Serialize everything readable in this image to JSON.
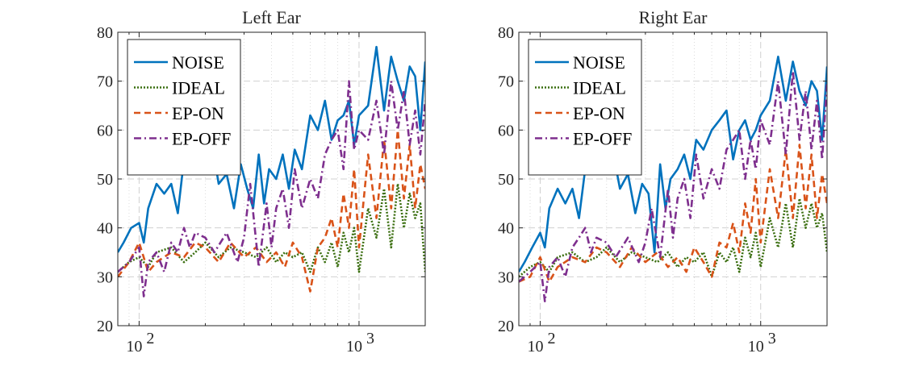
{
  "chart_data": [
    {
      "type": "line",
      "title": "Left Ear",
      "xlabel": "",
      "ylabel": "",
      "xscale": "log",
      "xlim": [
        80,
        2000
      ],
      "ylim": [
        20,
        80
      ],
      "yticks": [
        20,
        30,
        40,
        50,
        60,
        70,
        80
      ],
      "xticks": [
        {
          "base": "10",
          "exp": "2"
        },
        {
          "base": "10",
          "exp": "3"
        }
      ],
      "grid": true,
      "legend": "top-left",
      "series": [
        {
          "name": "NOISE",
          "color": "#0072BD",
          "style": "solid",
          "x": [
            80,
            85,
            92,
            100,
            105,
            110,
            120,
            130,
            140,
            150,
            160,
            170,
            180,
            190,
            200,
            215,
            230,
            250,
            270,
            290,
            310,
            330,
            350,
            370,
            390,
            420,
            450,
            480,
            510,
            550,
            600,
            650,
            700,
            750,
            800,
            850,
            900,
            950,
            1000,
            1100,
            1200,
            1300,
            1400,
            1500,
            1600,
            1700,
            1800,
            1900,
            2000
          ],
          "values": [
            35,
            37,
            40,
            41,
            37,
            44,
            49,
            47,
            49,
            43,
            54,
            57,
            55,
            58,
            53,
            57,
            49,
            51,
            44,
            53,
            48,
            44,
            55,
            45,
            52,
            50,
            55,
            48,
            56,
            52,
            63,
            60,
            66,
            58,
            62,
            63,
            66,
            57,
            63,
            65,
            77,
            64,
            75,
            70,
            66,
            73,
            71,
            60,
            74
          ]
        },
        {
          "name": "IDEAL",
          "color": "#3A6E0F",
          "style": "dotted",
          "x": [
            80,
            90,
            100,
            110,
            120,
            140,
            160,
            180,
            200,
            230,
            260,
            300,
            340,
            380,
            420,
            460,
            500,
            550,
            600,
            650,
            700,
            750,
            800,
            850,
            900,
            950,
            1000,
            1100,
            1200,
            1300,
            1400,
            1500,
            1600,
            1700,
            1800,
            1900,
            2000
          ],
          "values": [
            31,
            33,
            34,
            32,
            35,
            36,
            33,
            35,
            37,
            34,
            36,
            35,
            34,
            36,
            33,
            35,
            34,
            35,
            31,
            36,
            33,
            37,
            32,
            39,
            35,
            40,
            31,
            44,
            38,
            48,
            36,
            49,
            40,
            47,
            42,
            45,
            31
          ]
        },
        {
          "name": "EP-ON",
          "color": "#D95319",
          "style": "dashed",
          "x": [
            80,
            90,
            100,
            110,
            120,
            140,
            160,
            180,
            200,
            230,
            260,
            300,
            340,
            380,
            420,
            460,
            500,
            550,
            600,
            650,
            700,
            750,
            800,
            850,
            900,
            950,
            1000,
            1100,
            1200,
            1300,
            1400,
            1500,
            1600,
            1700,
            1800,
            1900,
            2000
          ],
          "values": [
            30,
            33,
            37,
            31,
            33,
            35,
            34,
            37,
            36,
            33,
            37,
            34,
            36,
            33,
            35,
            32,
            37,
            34,
            27,
            36,
            38,
            42,
            36,
            47,
            40,
            52,
            36,
            55,
            42,
            58,
            44,
            60,
            46,
            57,
            44,
            53,
            48
          ]
        },
        {
          "name": "EP-OFF",
          "color": "#7E2F8E",
          "style": "dashdot",
          "x": [
            80,
            90,
            100,
            105,
            110,
            120,
            130,
            140,
            150,
            160,
            170,
            180,
            200,
            220,
            250,
            280,
            300,
            320,
            350,
            380,
            400,
            420,
            450,
            480,
            510,
            550,
            600,
            650,
            700,
            750,
            800,
            850,
            900,
            950,
            1000,
            1100,
            1200,
            1300,
            1400,
            1500,
            1600,
            1700,
            1800,
            1900,
            2000
          ],
          "values": [
            31,
            33,
            36,
            26,
            33,
            35,
            31,
            37,
            35,
            40,
            36,
            39,
            38,
            35,
            39,
            33,
            38,
            49,
            32,
            45,
            36,
            44,
            48,
            40,
            52,
            44,
            50,
            46,
            55,
            58,
            60,
            52,
            70,
            56,
            60,
            58,
            66,
            55,
            70,
            60,
            68,
            57,
            64,
            55,
            66
          ]
        }
      ]
    },
    {
      "type": "line",
      "title": "Right Ear",
      "xlabel": "",
      "ylabel": "",
      "xscale": "log",
      "xlim": [
        80,
        2000
      ],
      "ylim": [
        20,
        80
      ],
      "yticks": [
        20,
        30,
        40,
        50,
        60,
        70,
        80
      ],
      "xticks": [
        {
          "base": "10",
          "exp": "2"
        },
        {
          "base": "10",
          "exp": "3"
        }
      ],
      "grid": true,
      "legend": "top-left",
      "series": [
        {
          "name": "NOISE",
          "color": "#0072BD",
          "style": "solid",
          "x": [
            80,
            85,
            92,
            100,
            105,
            110,
            120,
            130,
            140,
            150,
            160,
            170,
            180,
            190,
            200,
            215,
            230,
            250,
            270,
            290,
            310,
            330,
            350,
            370,
            390,
            420,
            450,
            480,
            510,
            550,
            600,
            650,
            700,
            750,
            800,
            850,
            900,
            950,
            1000,
            1100,
            1200,
            1300,
            1400,
            1500,
            1600,
            1700,
            1800,
            1900,
            2000
          ],
          "values": [
            31,
            33,
            36,
            39,
            36,
            44,
            48,
            45,
            48,
            42,
            52,
            54,
            55,
            56,
            52,
            55,
            48,
            51,
            43,
            49,
            47,
            35,
            53,
            44,
            50,
            52,
            55,
            50,
            58,
            56,
            60,
            62,
            64,
            54,
            60,
            62,
            58,
            60,
            63,
            66,
            75,
            66,
            74,
            68,
            65,
            70,
            68,
            58,
            73
          ]
        },
        {
          "name": "IDEAL",
          "color": "#3A6E0F",
          "style": "dotted",
          "x": [
            80,
            90,
            100,
            110,
            120,
            140,
            160,
            180,
            200,
            230,
            260,
            300,
            340,
            380,
            420,
            460,
            500,
            550,
            600,
            650,
            700,
            750,
            800,
            850,
            900,
            950,
            1000,
            1100,
            1200,
            1300,
            1400,
            1500,
            1600,
            1700,
            1800,
            1900,
            2000
          ],
          "values": [
            30,
            32,
            33,
            31,
            34,
            35,
            33,
            34,
            36,
            33,
            35,
            34,
            33,
            35,
            32,
            34,
            33,
            35,
            30,
            35,
            33,
            36,
            31,
            38,
            34,
            39,
            32,
            42,
            36,
            45,
            36,
            46,
            40,
            45,
            40,
            43,
            35
          ]
        },
        {
          "name": "EP-ON",
          "color": "#D95319",
          "style": "dashed",
          "x": [
            80,
            90,
            100,
            110,
            120,
            140,
            160,
            180,
            200,
            230,
            260,
            300,
            340,
            380,
            420,
            460,
            500,
            550,
            600,
            650,
            700,
            750,
            800,
            850,
            900,
            950,
            1000,
            1100,
            1200,
            1300,
            1400,
            1500,
            1600,
            1700,
            1800,
            1900,
            2000
          ],
          "values": [
            29,
            30,
            34,
            29,
            32,
            34,
            33,
            36,
            35,
            32,
            36,
            33,
            35,
            32,
            34,
            31,
            36,
            33,
            30,
            37,
            36,
            41,
            35,
            45,
            39,
            50,
            37,
            52,
            42,
            56,
            42,
            57,
            44,
            55,
            42,
            51,
            45
          ]
        },
        {
          "name": "EP-OFF",
          "color": "#7E2F8E",
          "style": "dashdot",
          "x": [
            80,
            90,
            100,
            105,
            110,
            120,
            130,
            140,
            150,
            160,
            170,
            180,
            200,
            220,
            250,
            280,
            300,
            320,
            350,
            380,
            400,
            420,
            450,
            480,
            510,
            550,
            600,
            650,
            700,
            750,
            800,
            850,
            900,
            950,
            1000,
            1100,
            1200,
            1300,
            1400,
            1500,
            1600,
            1700,
            1800,
            1900,
            2000
          ],
          "values": [
            29,
            31,
            33,
            25,
            32,
            34,
            30,
            36,
            38,
            40,
            35,
            38,
            37,
            34,
            38,
            33,
            37,
            44,
            34,
            48,
            38,
            46,
            50,
            42,
            55,
            46,
            52,
            48,
            56,
            58,
            60,
            50,
            58,
            52,
            62,
            57,
            70,
            55,
            72,
            58,
            68,
            56,
            66,
            54,
            70
          ]
        }
      ]
    }
  ]
}
